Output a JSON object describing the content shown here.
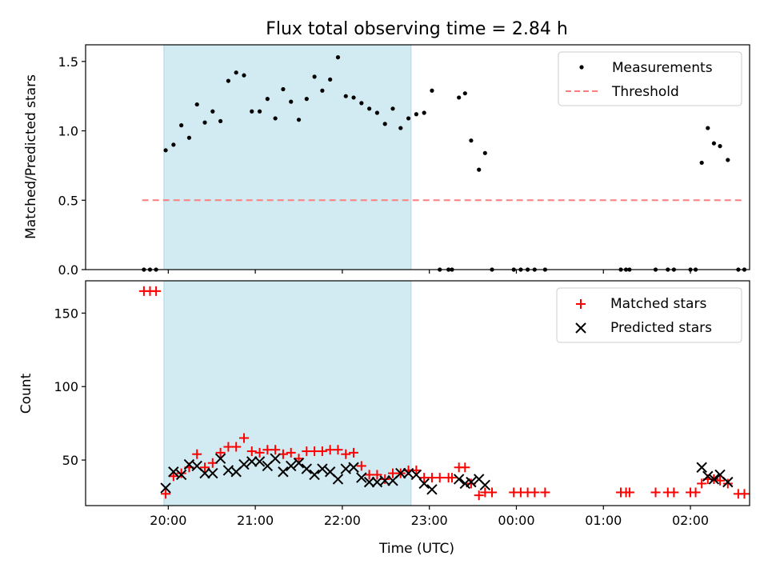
{
  "chart_data": {
    "type": "scatter",
    "title": "Flux total observing time = 2.84 h",
    "xlabel": "Time (UTC)",
    "x_unit": "hours after 00:00 UTC on the first day (e.g. 21.0 = 21:00, 25.0 = 01:00 next day)",
    "xlim": [
      19.05,
      26.68
    ],
    "xticks": [
      {
        "value": 20,
        "label": "20:00"
      },
      {
        "value": 21,
        "label": "21:00"
      },
      {
        "value": 22,
        "label": "22:00"
      },
      {
        "value": 23,
        "label": "23:00"
      },
      {
        "value": 24,
        "label": "00:00"
      },
      {
        "value": 25,
        "label": "01:00"
      },
      {
        "value": 26,
        "label": "02:00"
      }
    ],
    "observing_window": [
      19.95,
      22.79
    ],
    "colors": {
      "shade": "#add8e6",
      "measurement": "#000000",
      "threshold": "#ff7f7f",
      "matched": "#ff0000",
      "predicted": "#000000"
    },
    "panels": [
      {
        "ylabel": "Matched/Predicted stars",
        "ylim": [
          0,
          1.62
        ],
        "yticks": [
          {
            "value": 0,
            "label": "0.0"
          },
          {
            "value": 0.5,
            "label": "0.5"
          },
          {
            "value": 1.0,
            "label": "1.0"
          },
          {
            "value": 1.5,
            "label": "1.5"
          }
        ],
        "legend_position": "top-right",
        "threshold": {
          "name": "Threshold",
          "value": 0.5,
          "x_range": [
            19.7,
            26.62
          ]
        },
        "series": [
          {
            "name": "Measurements",
            "marker": "dot",
            "points": [
              [
                19.72,
                0
              ],
              [
                19.79,
                0
              ],
              [
                19.86,
                0
              ],
              [
                19.97,
                0.86
              ],
              [
                20.06,
                0.9
              ],
              [
                20.15,
                1.04
              ],
              [
                20.24,
                0.95
              ],
              [
                20.33,
                1.19
              ],
              [
                20.42,
                1.06
              ],
              [
                20.51,
                1.14
              ],
              [
                20.6,
                1.07
              ],
              [
                20.69,
                1.36
              ],
              [
                20.78,
                1.42
              ],
              [
                20.87,
                1.4
              ],
              [
                20.96,
                1.14
              ],
              [
                21.05,
                1.14
              ],
              [
                21.14,
                1.23
              ],
              [
                21.23,
                1.09
              ],
              [
                21.32,
                1.3
              ],
              [
                21.41,
                1.21
              ],
              [
                21.5,
                1.08
              ],
              [
                21.59,
                1.23
              ],
              [
                21.68,
                1.39
              ],
              [
                21.77,
                1.29
              ],
              [
                21.86,
                1.37
              ],
              [
                21.95,
                1.53
              ],
              [
                22.04,
                1.25
              ],
              [
                22.13,
                1.24
              ],
              [
                22.22,
                1.2
              ],
              [
                22.31,
                1.16
              ],
              [
                22.4,
                1.13
              ],
              [
                22.49,
                1.05
              ],
              [
                22.58,
                1.16
              ],
              [
                22.67,
                1.02
              ],
              [
                22.76,
                1.09
              ],
              [
                22.85,
                1.12
              ],
              [
                22.94,
                1.13
              ],
              [
                23.03,
                1.29
              ],
              [
                23.12,
                0
              ],
              [
                23.22,
                0
              ],
              [
                23.26,
                0
              ],
              [
                23.34,
                1.24
              ],
              [
                23.41,
                1.27
              ],
              [
                23.48,
                0.93
              ],
              [
                23.57,
                0.72
              ],
              [
                23.64,
                0.84
              ],
              [
                23.72,
                0
              ],
              [
                23.97,
                0
              ],
              [
                24.05,
                0
              ],
              [
                24.13,
                0
              ],
              [
                24.21,
                0
              ],
              [
                24.33,
                0
              ],
              [
                25.2,
                0
              ],
              [
                25.26,
                0
              ],
              [
                25.3,
                0
              ],
              [
                25.6,
                0
              ],
              [
                25.74,
                0
              ],
              [
                25.81,
                0
              ],
              [
                26.0,
                0
              ],
              [
                26.06,
                0
              ],
              [
                26.13,
                0.77
              ],
              [
                26.2,
                1.02
              ],
              [
                26.27,
                0.91
              ],
              [
                26.34,
                0.89
              ],
              [
                26.43,
                0.79
              ],
              [
                26.55,
                0
              ],
              [
                26.62,
                0
              ]
            ]
          }
        ]
      },
      {
        "ylabel": "Count",
        "ylim": [
          19,
          172
        ],
        "yticks": [
          {
            "value": 50,
            "label": "50"
          },
          {
            "value": 100,
            "label": "100"
          },
          {
            "value": 150,
            "label": "150"
          }
        ],
        "legend_position": "top-right",
        "series": [
          {
            "name": "Matched stars",
            "marker": "plus",
            "points": [
              [
                19.72,
                165
              ],
              [
                19.79,
                165
              ],
              [
                19.86,
                165
              ],
              [
                19.97,
                27
              ],
              [
                20.06,
                39
              ],
              [
                20.15,
                41
              ],
              [
                20.24,
                45
              ],
              [
                20.33,
                54
              ],
              [
                20.42,
                45
              ],
              [
                20.51,
                48
              ],
              [
                20.6,
                55
              ],
              [
                20.69,
                59
              ],
              [
                20.78,
                59
              ],
              [
                20.87,
                65
              ],
              [
                20.96,
                56
              ],
              [
                21.05,
                55
              ],
              [
                21.14,
                57
              ],
              [
                21.23,
                57
              ],
              [
                21.32,
                54
              ],
              [
                21.41,
                55
              ],
              [
                21.5,
                51
              ],
              [
                21.59,
                56
              ],
              [
                21.68,
                56
              ],
              [
                21.77,
                56
              ],
              [
                21.86,
                57
              ],
              [
                21.95,
                57
              ],
              [
                22.04,
                54
              ],
              [
                22.13,
                55
              ],
              [
                22.22,
                46
              ],
              [
                22.31,
                40
              ],
              [
                22.4,
                40
              ],
              [
                22.49,
                37
              ],
              [
                22.58,
                41
              ],
              [
                22.67,
                41
              ],
              [
                22.76,
                43
              ],
              [
                22.85,
                43
              ],
              [
                22.94,
                38
              ],
              [
                23.03,
                38
              ],
              [
                23.12,
                38
              ],
              [
                23.22,
                38
              ],
              [
                23.26,
                38
              ],
              [
                23.34,
                45
              ],
              [
                23.41,
                45
              ],
              [
                23.48,
                34
              ],
              [
                23.57,
                26
              ],
              [
                23.64,
                28
              ],
              [
                23.72,
                28
              ],
              [
                23.97,
                28
              ],
              [
                24.05,
                28
              ],
              [
                24.13,
                28
              ],
              [
                24.21,
                28
              ],
              [
                24.33,
                28
              ],
              [
                25.2,
                28
              ],
              [
                25.26,
                28
              ],
              [
                25.3,
                28
              ],
              [
                25.6,
                28
              ],
              [
                25.74,
                28
              ],
              [
                25.81,
                28
              ],
              [
                26.0,
                28
              ],
              [
                26.06,
                28
              ],
              [
                26.13,
                34
              ],
              [
                26.2,
                37
              ],
              [
                26.27,
                37
              ],
              [
                26.34,
                36
              ],
              [
                26.43,
                34
              ],
              [
                26.55,
                27
              ],
              [
                26.62,
                27
              ]
            ]
          },
          {
            "name": "Predicted stars",
            "marker": "x",
            "points": [
              [
                19.97,
                31
              ],
              [
                20.06,
                42
              ],
              [
                20.15,
                40
              ],
              [
                20.24,
                47
              ],
              [
                20.33,
                46
              ],
              [
                20.42,
                41
              ],
              [
                20.51,
                41
              ],
              [
                20.6,
                51
              ],
              [
                20.69,
                43
              ],
              [
                20.78,
                42
              ],
              [
                20.87,
                47
              ],
              [
                20.96,
                49
              ],
              [
                21.05,
                49
              ],
              [
                21.14,
                46
              ],
              [
                21.23,
                51
              ],
              [
                21.32,
                42
              ],
              [
                21.41,
                46
              ],
              [
                21.5,
                48
              ],
              [
                21.59,
                44
              ],
              [
                21.68,
                40
              ],
              [
                21.77,
                44
              ],
              [
                21.86,
                42
              ],
              [
                21.95,
                37
              ],
              [
                22.04,
                44
              ],
              [
                22.13,
                45
              ],
              [
                22.22,
                38
              ],
              [
                22.31,
                35
              ],
              [
                22.4,
                35
              ],
              [
                22.49,
                36
              ],
              [
                22.58,
                36
              ],
              [
                22.67,
                41
              ],
              [
                22.76,
                41
              ],
              [
                22.85,
                40
              ],
              [
                22.94,
                34
              ],
              [
                23.03,
                30
              ],
              [
                23.34,
                37
              ],
              [
                23.41,
                34
              ],
              [
                23.48,
                35
              ],
              [
                23.57,
                37
              ],
              [
                23.64,
                33
              ],
              [
                26.13,
                45
              ],
              [
                26.2,
                39
              ],
              [
                26.27,
                37
              ],
              [
                26.34,
                40
              ],
              [
                26.43,
                35
              ]
            ]
          }
        ]
      }
    ]
  }
}
